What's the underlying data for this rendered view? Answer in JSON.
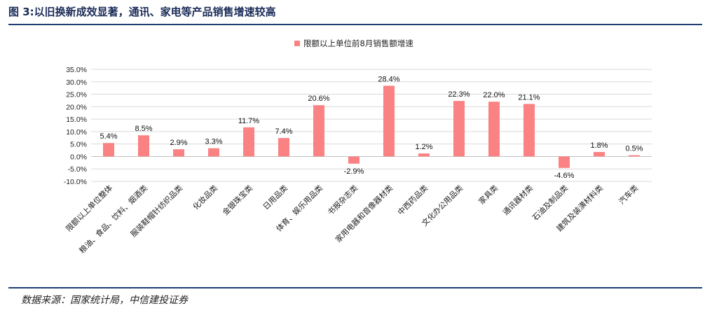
{
  "figure": {
    "title": "图 3:以旧换新成效显著，通讯、家电等产品销售增速较高",
    "source": "数据来源：国家统计局，中信建投证券"
  },
  "colors": {
    "bar": "#fb8282",
    "rule": "#1f3f73",
    "title": "#1a2b57",
    "gridline": "#d9d9d9"
  },
  "chart_data": {
    "type": "bar",
    "title": "",
    "xlabel": "",
    "ylabel": "",
    "ylim": [
      -10,
      35
    ],
    "yticks": [
      35,
      30,
      25,
      20,
      15,
      10,
      5,
      0,
      -5,
      -10
    ],
    "ytick_labels": [
      "35.0%",
      "30.0%",
      "25.0%",
      "20.0%",
      "15.0%",
      "10.0%",
      "5.0%",
      "0.0%",
      "-5.0%",
      "-10.0%"
    ],
    "grid": "horizontal",
    "legend_position": "top-center",
    "categories": [
      "限额以上单位整体",
      "粮油、食品、饮料、烟酒类",
      "服装鞋帽针纺织品类",
      "化妆品类",
      "金银珠宝类",
      "日用品类",
      "体育、娱乐用品类",
      "书报杂志类",
      "家用电器和音像器材类",
      "中西药品类",
      "文化办公用品类",
      "家具类",
      "通讯器材类",
      "石油及制品类",
      "建筑及装潢材料类",
      "汽车类"
    ],
    "series": [
      {
        "name": "限额以上单位前8月销售额增速",
        "values": [
          5.4,
          8.5,
          2.9,
          3.3,
          11.7,
          7.4,
          20.6,
          -2.9,
          28.4,
          1.2,
          22.3,
          22.0,
          21.1,
          -4.6,
          1.8,
          0.5
        ],
        "value_labels": [
          "5.4%",
          "8.5%",
          "2.9%",
          "3.3%",
          "11.7%",
          "7.4%",
          "20.6%",
          "-2.9%",
          "28.4%",
          "1.2%",
          "22.3%",
          "22.0%",
          "21.1%",
          "-4.6%",
          "1.8%",
          "0.5%"
        ]
      }
    ]
  }
}
